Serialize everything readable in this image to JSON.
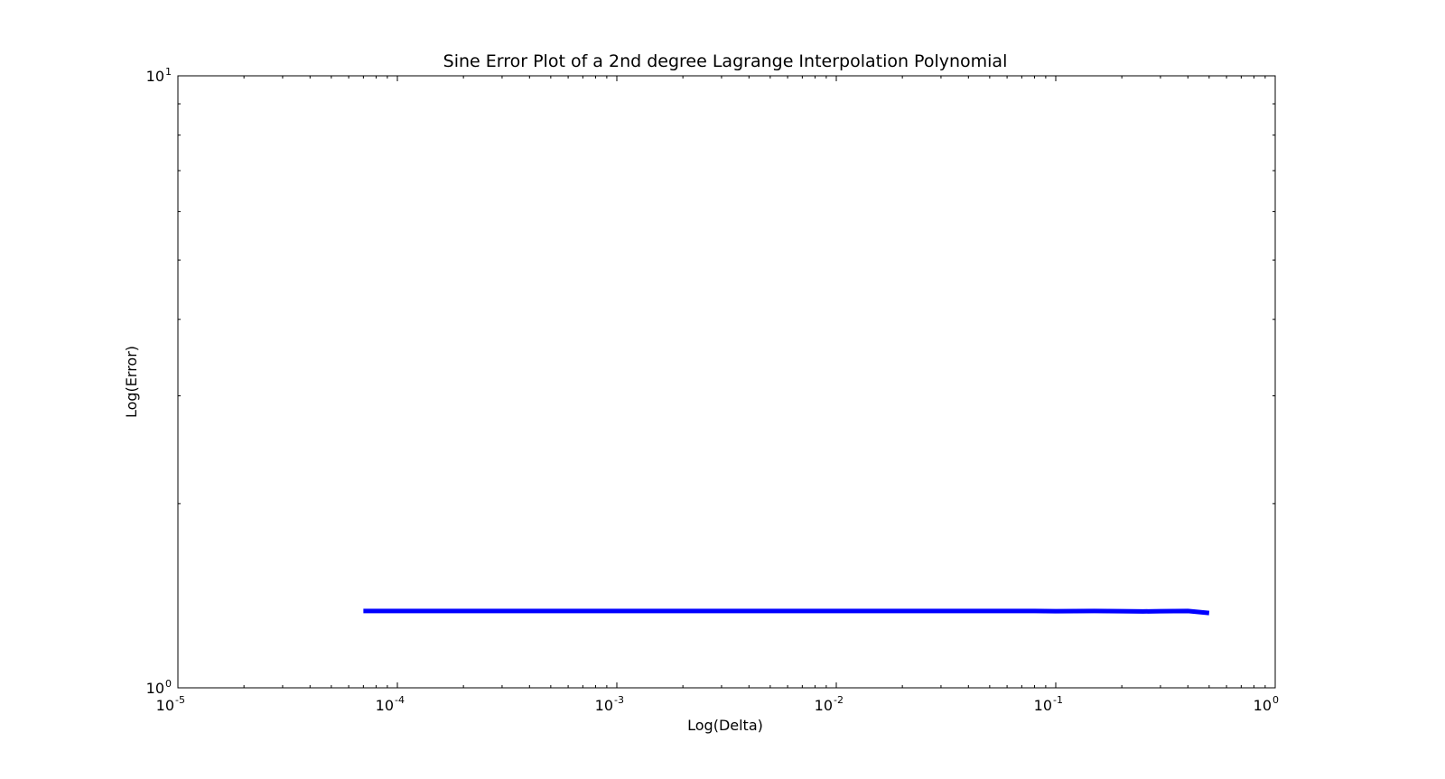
{
  "chart_data": {
    "type": "line",
    "title": "Sine Error Plot of a 2nd degree Lagrange Interpolation Polynomial",
    "xlabel": "Log(Delta)",
    "ylabel": "Log(Error)",
    "xscale": "log",
    "yscale": "log",
    "xlim": [
      1e-05,
      1
    ],
    "ylim": [
      1,
      10
    ],
    "grid": false,
    "x_ticks": [
      {
        "value": 1e-05,
        "base": "10",
        "exp": "-5"
      },
      {
        "value": 0.0001,
        "base": "10",
        "exp": "-4"
      },
      {
        "value": 0.001,
        "base": "10",
        "exp": "-3"
      },
      {
        "value": 0.01,
        "base": "10",
        "exp": "-2"
      },
      {
        "value": 0.1,
        "base": "10",
        "exp": "-1"
      },
      {
        "value": 1,
        "base": "10",
        "exp": "0"
      }
    ],
    "y_ticks": [
      {
        "value": 1,
        "base": "10",
        "exp": "0"
      },
      {
        "value": 10,
        "base": "10",
        "exp": "1"
      }
    ],
    "series": [
      {
        "color": "#0000ff",
        "x": [
          7e-05,
          0.0001,
          0.001,
          0.01,
          0.08,
          0.1,
          0.15,
          0.2,
          0.25,
          0.3,
          0.4,
          0.5
        ],
        "y": [
          1.335,
          1.335,
          1.335,
          1.335,
          1.335,
          1.334,
          1.335,
          1.334,
          1.333,
          1.334,
          1.335,
          1.325
        ]
      }
    ]
  }
}
